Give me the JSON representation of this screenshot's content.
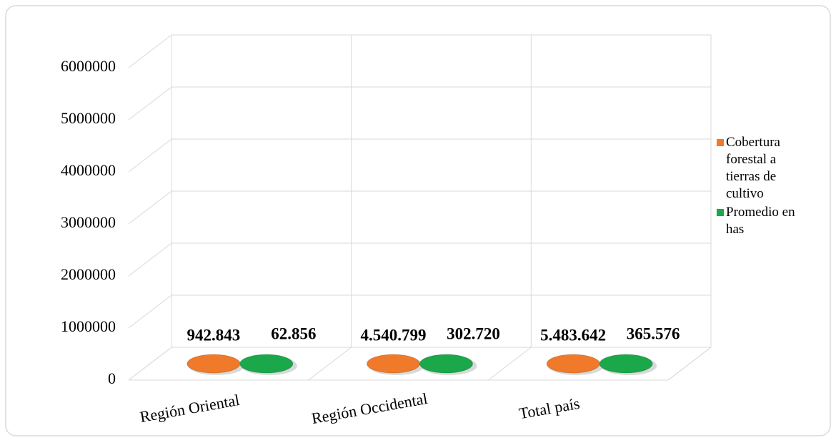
{
  "chart_data": {
    "type": "bar3d",
    "categories": [
      "Región Oriental",
      "Región Occidental",
      "Total país"
    ],
    "series": [
      {
        "name": "Cobertura forestal a tierras de cultivo",
        "color": "#f07a2a",
        "values": [
          942843,
          4540799,
          5483642
        ],
        "value_labels": [
          "942.843",
          "4.540.799",
          "5.483.642"
        ]
      },
      {
        "name": "Promedio en has",
        "color": "#1aa84a",
        "values": [
          62856,
          302720,
          365576
        ],
        "value_labels": [
          "62.856",
          "302.720",
          "365.576"
        ]
      }
    ],
    "ylim": [
      0,
      6000000
    ],
    "yticks": [
      0,
      1000000,
      2000000,
      3000000,
      4000000,
      5000000,
      6000000
    ],
    "grid": true,
    "legend": "right"
  }
}
